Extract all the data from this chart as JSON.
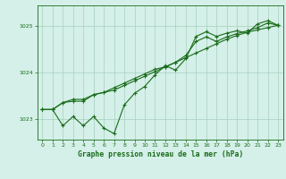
{
  "bg_color": "#d4f0e8",
  "line_color": "#1a6b1a",
  "grid_color": "#a8cfc0",
  "title": "Graphe pression niveau de la mer (hPa)",
  "title_color": "#1a6b1a",
  "xlim": [
    -0.5,
    23.5
  ],
  "ylim": [
    1022.55,
    1025.45
  ],
  "yticks": [
    1023,
    1024,
    1025
  ],
  "xticks": [
    0,
    1,
    2,
    3,
    4,
    5,
    6,
    7,
    8,
    9,
    10,
    11,
    12,
    13,
    14,
    15,
    16,
    17,
    18,
    19,
    20,
    21,
    22,
    23
  ],
  "series": [
    [
      1023.2,
      1023.2,
      1022.85,
      1023.05,
      1022.85,
      1023.05,
      1022.8,
      1022.68,
      1023.3,
      1023.55,
      1023.7,
      1023.95,
      1024.15,
      1024.05,
      1024.3,
      1024.78,
      1024.88,
      1024.78,
      1024.85,
      1024.9,
      1024.85,
      1025.05,
      1025.12,
      1025.02
    ],
    [
      1023.2,
      1023.2,
      1023.35,
      1023.38,
      1023.38,
      1023.52,
      1023.57,
      1023.62,
      1023.72,
      1023.82,
      1023.92,
      1024.02,
      1024.12,
      1024.22,
      1024.32,
      1024.42,
      1024.52,
      1024.62,
      1024.72,
      1024.8,
      1024.87,
      1024.92,
      1024.97,
      1025.02
    ],
    [
      1023.2,
      1023.2,
      1023.35,
      1023.42,
      1023.42,
      1023.52,
      1023.57,
      1023.67,
      1023.77,
      1023.87,
      1023.97,
      1024.07,
      1024.12,
      1024.22,
      1024.37,
      1024.67,
      1024.77,
      1024.67,
      1024.77,
      1024.84,
      1024.9,
      1024.97,
      1025.07,
      1025.02
    ]
  ]
}
